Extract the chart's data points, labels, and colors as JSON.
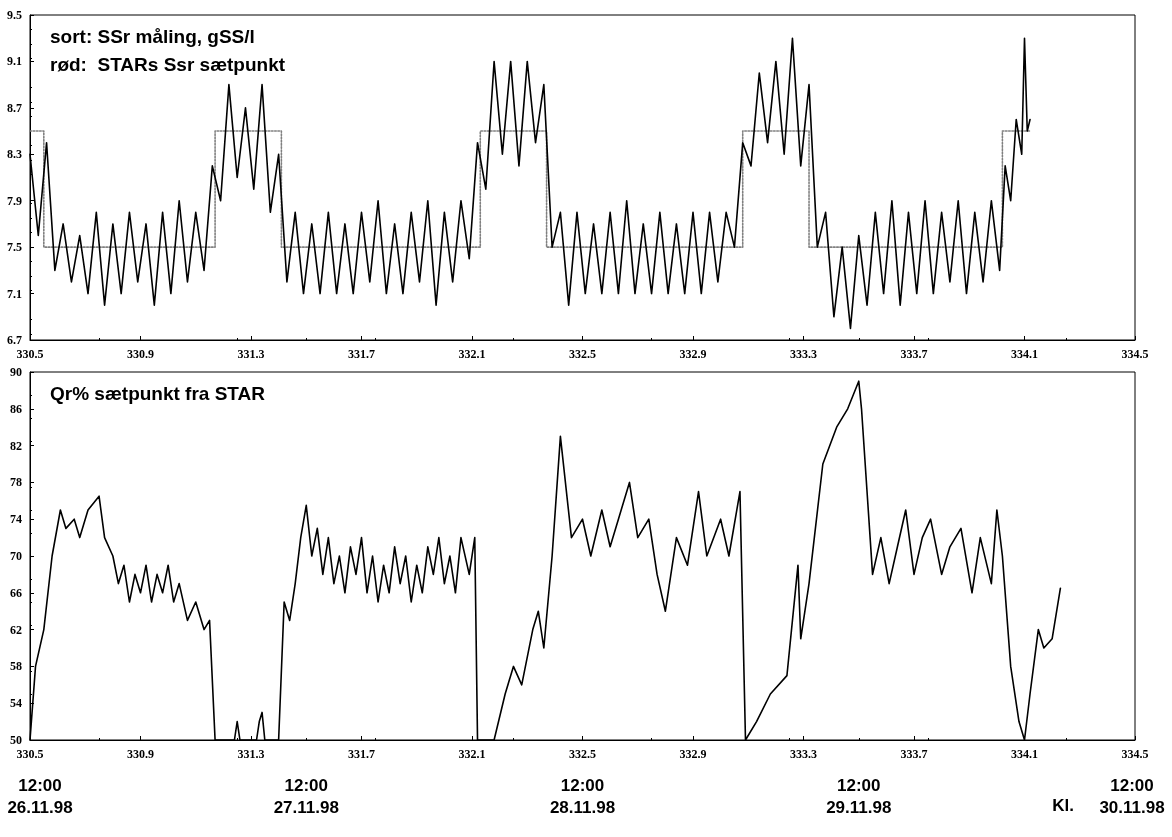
{
  "chart_data": [
    {
      "type": "line",
      "annotations": [
        "sort: SSr måling, gSS/l",
        "rød:  STARs Ssr sætpunkt"
      ],
      "xlim": [
        330.5,
        334.5
      ],
      "xticks": [
        330.5,
        330.9,
        331.3,
        331.7,
        332.1,
        332.5,
        332.9,
        333.3,
        333.7,
        334.1,
        334.5
      ],
      "ylim": [
        6.7,
        9.5
      ],
      "yticks": [
        6.7,
        7.1,
        7.5,
        7.9,
        8.3,
        8.7,
        9.1,
        9.5
      ],
      "marker": "none",
      "series": [
        {
          "type": "step",
          "color": "#808080",
          "line_style": "dotted",
          "x": [
            330.5,
            330.55,
            331.17,
            331.41,
            332.13,
            332.37,
            333.08,
            333.32,
            334.02,
            334.12
          ],
          "values": [
            8.5,
            7.5,
            8.5,
            7.5,
            8.5,
            7.5,
            8.5,
            7.5,
            8.5,
            8.5
          ]
        },
        {
          "color": "#000000",
          "line_style": "solid",
          "x": [
            330.5,
            330.53,
            330.56,
            330.59,
            330.62,
            330.65,
            330.68,
            330.71,
            330.74,
            330.77,
            330.8,
            330.83,
            330.86,
            330.89,
            330.92,
            330.95,
            330.98,
            331.01,
            331.04,
            331.07,
            331.1,
            331.13,
            331.16,
            331.19,
            331.22,
            331.25,
            331.28,
            331.31,
            331.34,
            331.37,
            331.4,
            331.43,
            331.46,
            331.49,
            331.52,
            331.55,
            331.58,
            331.61,
            331.64,
            331.67,
            331.7,
            331.73,
            331.76,
            331.79,
            331.82,
            331.85,
            331.88,
            331.91,
            331.94,
            331.97,
            332.0,
            332.03,
            332.06,
            332.09,
            332.12,
            332.15,
            332.18,
            332.21,
            332.24,
            332.27,
            332.3,
            332.33,
            332.36,
            332.39,
            332.42,
            332.45,
            332.48,
            332.51,
            332.54,
            332.57,
            332.6,
            332.63,
            332.66,
            332.69,
            332.72,
            332.75,
            332.78,
            332.81,
            332.84,
            332.87,
            332.9,
            332.93,
            332.96,
            332.99,
            333.02,
            333.05,
            333.08,
            333.11,
            333.14,
            333.17,
            333.2,
            333.23,
            333.26,
            333.29,
            333.32,
            333.35,
            333.38,
            333.41,
            333.44,
            333.47,
            333.5,
            333.53,
            333.56,
            333.59,
            333.62,
            333.65,
            333.68,
            333.71,
            333.74,
            333.77,
            333.8,
            333.83,
            333.86,
            333.89,
            333.92,
            333.95,
            333.98,
            334.01,
            334.03,
            334.05,
            334.07,
            334.09,
            334.1,
            334.11,
            334.12
          ],
          "values": [
            8.3,
            7.6,
            8.4,
            7.3,
            7.7,
            7.2,
            7.6,
            7.1,
            7.8,
            7.0,
            7.7,
            7.1,
            7.8,
            7.2,
            7.7,
            7.0,
            7.8,
            7.1,
            7.9,
            7.2,
            7.8,
            7.3,
            8.2,
            7.9,
            8.9,
            8.1,
            8.7,
            8.0,
            8.9,
            7.8,
            8.3,
            7.2,
            7.8,
            7.1,
            7.7,
            7.1,
            7.8,
            7.1,
            7.7,
            7.1,
            7.8,
            7.2,
            7.9,
            7.1,
            7.7,
            7.1,
            7.8,
            7.2,
            7.9,
            7.0,
            7.8,
            7.2,
            7.9,
            7.4,
            8.4,
            8.0,
            9.1,
            8.3,
            9.1,
            8.2,
            9.1,
            8.4,
            8.9,
            7.5,
            7.8,
            7.0,
            7.8,
            7.1,
            7.7,
            7.1,
            7.8,
            7.1,
            7.9,
            7.1,
            7.7,
            7.1,
            7.8,
            7.1,
            7.7,
            7.1,
            7.8,
            7.1,
            7.8,
            7.2,
            7.8,
            7.5,
            8.4,
            8.2,
            9.0,
            8.4,
            9.1,
            8.3,
            9.3,
            8.2,
            8.9,
            7.5,
            7.8,
            6.9,
            7.5,
            6.8,
            7.6,
            7.0,
            7.8,
            7.1,
            7.9,
            7.0,
            7.8,
            7.1,
            7.9,
            7.1,
            7.8,
            7.2,
            7.9,
            7.1,
            7.8,
            7.2,
            7.9,
            7.3,
            8.2,
            7.9,
            8.6,
            8.3,
            9.3,
            8.5,
            8.6
          ]
        }
      ]
    },
    {
      "type": "line",
      "annotations": [
        "Qr% sætpunkt fra STAR",
        "12:00\n26.11.98",
        "12:00\n27.11.98",
        "12:00\n28.11.98",
        "12:00\n29.11.98",
        "Kl.",
        "12:00\n30.11.98"
      ],
      "xlim": [
        330.5,
        334.5
      ],
      "xticks": [
        330.5,
        330.9,
        331.3,
        331.7,
        332.1,
        332.5,
        332.9,
        333.3,
        333.7,
        334.1,
        334.5
      ],
      "ylim": [
        50,
        90
      ],
      "yticks": [
        50,
        54,
        58,
        62,
        66,
        70,
        74,
        78,
        82,
        86,
        90
      ],
      "marker": "none",
      "series": [
        {
          "color": "#000000",
          "line_style": "solid",
          "x": [
            330.5,
            330.52,
            330.55,
            330.58,
            330.61,
            330.63,
            330.66,
            330.68,
            330.71,
            330.75,
            330.77,
            330.8,
            330.82,
            330.84,
            330.86,
            330.88,
            330.9,
            330.92,
            330.94,
            330.96,
            330.98,
            331.0,
            331.02,
            331.04,
            331.07,
            331.1,
            331.13,
            331.15,
            331.17,
            331.24,
            331.25,
            331.26,
            331.32,
            331.33,
            331.34,
            331.35,
            331.4,
            331.42,
            331.44,
            331.46,
            331.48,
            331.5,
            331.52,
            331.54,
            331.56,
            331.58,
            331.6,
            331.62,
            331.64,
            331.66,
            331.68,
            331.7,
            331.72,
            331.74,
            331.76,
            331.78,
            331.8,
            331.82,
            331.84,
            331.86,
            331.88,
            331.9,
            331.92,
            331.94,
            331.96,
            331.98,
            332.0,
            332.02,
            332.04,
            332.06,
            332.09,
            332.11,
            332.12,
            332.18,
            332.22,
            332.25,
            332.28,
            332.32,
            332.34,
            332.36,
            332.39,
            332.42,
            332.46,
            332.5,
            332.53,
            332.57,
            332.6,
            332.63,
            332.67,
            332.7,
            332.74,
            332.77,
            332.8,
            332.84,
            332.88,
            332.92,
            332.95,
            333.0,
            333.03,
            333.07,
            333.09,
            333.13,
            333.18,
            333.24,
            333.28,
            333.29,
            333.32,
            333.37,
            333.42,
            333.46,
            333.5,
            333.51,
            333.55,
            333.58,
            333.61,
            333.64,
            333.67,
            333.7,
            333.73,
            333.76,
            333.8,
            333.83,
            333.87,
            333.91,
            333.94,
            333.98,
            334.0,
            334.02,
            334.05,
            334.08,
            334.1,
            334.12,
            334.15,
            334.17,
            334.2,
            334.23
          ],
          "values": [
            50,
            58,
            62,
            70,
            75,
            73,
            74,
            72,
            75,
            76.5,
            72,
            70,
            67,
            69,
            65,
            68,
            66,
            69,
            65,
            68,
            66,
            69,
            65,
            67,
            63,
            65,
            62,
            63,
            50,
            50,
            52,
            50,
            50,
            52,
            53,
            50,
            50,
            65,
            63,
            67,
            72,
            75.5,
            70,
            73,
            68,
            72,
            67,
            70,
            66,
            71,
            68,
            72,
            66,
            70,
            65,
            69,
            66,
            71,
            67,
            70,
            65,
            69,
            66,
            71,
            68,
            72,
            67,
            70,
            66,
            72,
            68,
            72,
            50,
            50,
            55,
            58,
            56,
            62,
            64,
            60,
            70,
            83,
            72,
            74,
            70,
            75,
            71,
            74,
            78,
            72,
            74,
            68,
            64,
            72,
            69,
            77,
            70,
            74,
            70,
            77,
            50,
            52,
            55,
            57,
            69,
            61,
            67,
            80,
            84,
            86,
            89,
            86,
            68,
            72,
            67,
            71,
            75,
            68,
            72,
            74,
            68,
            71,
            73,
            66,
            72,
            67,
            75,
            70,
            58,
            52,
            50,
            55,
            62,
            60,
            61,
            66.5
          ]
        }
      ]
    }
  ]
}
